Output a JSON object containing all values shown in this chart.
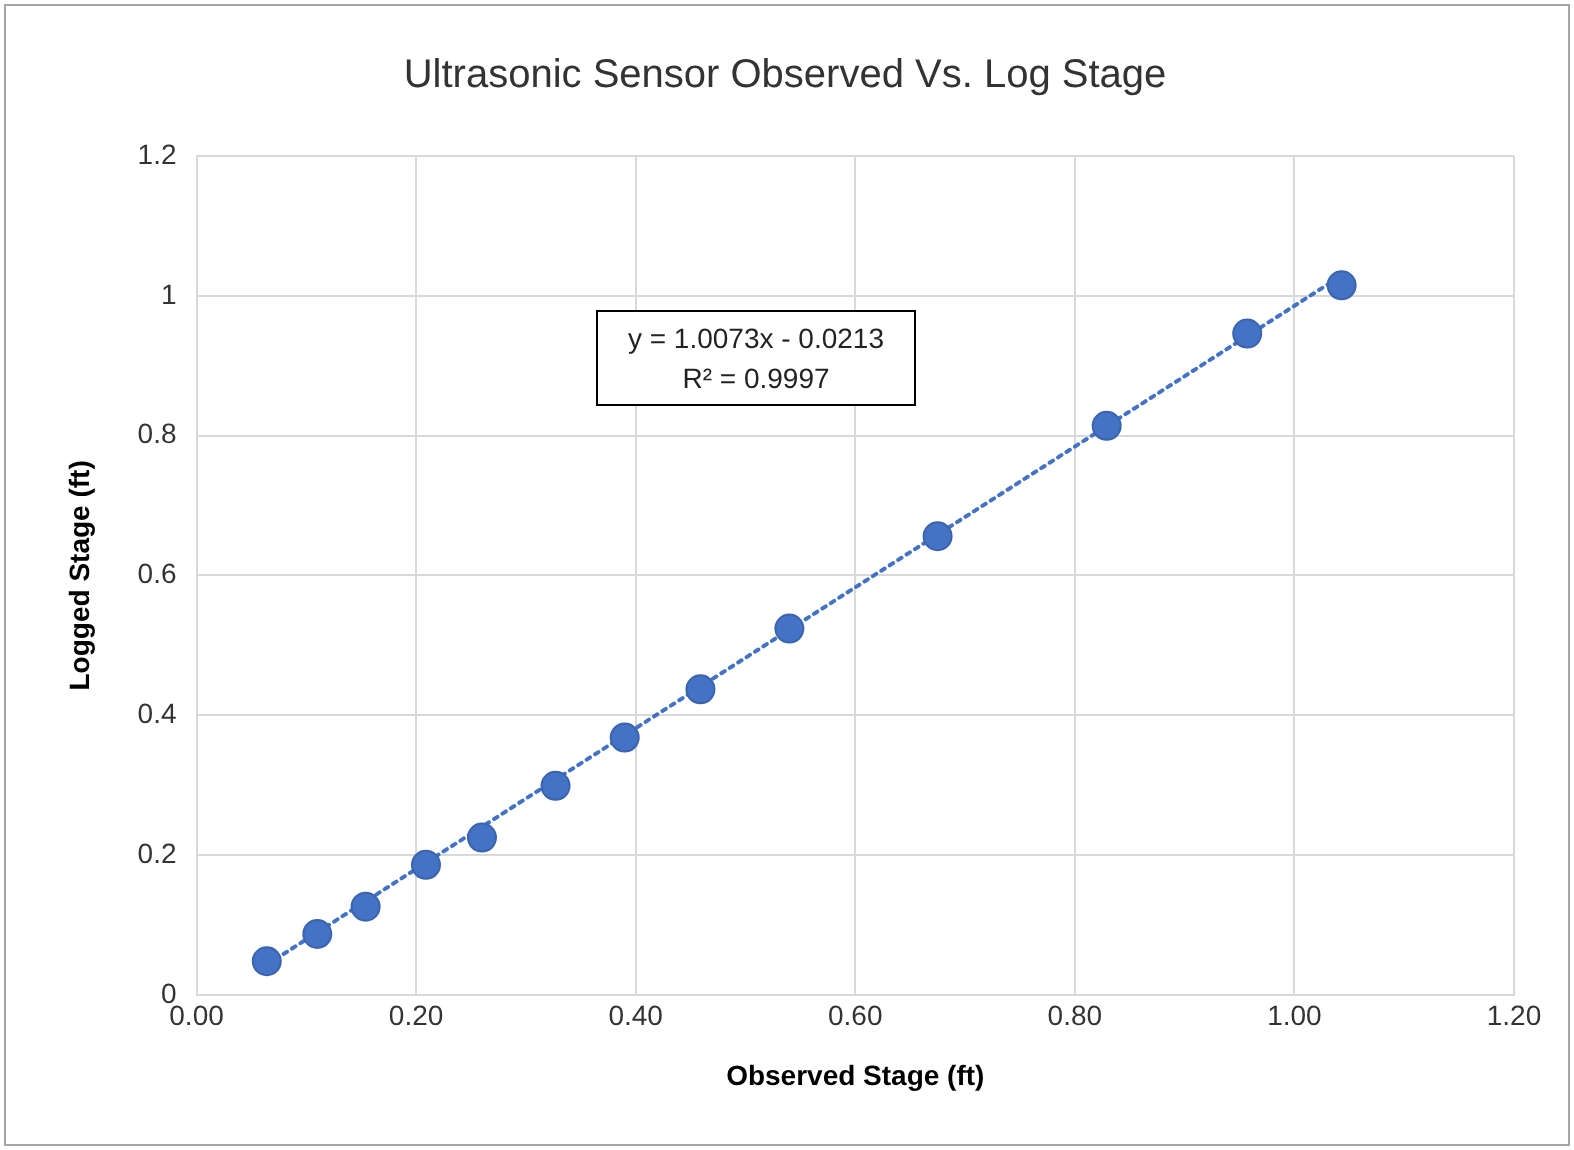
{
  "chart_data": {
    "type": "scatter",
    "title": "Ultrasonic Sensor Observed Vs. Log Stage",
    "xlabel": "Observed Stage (ft)",
    "ylabel": "Logged Stage (ft)",
    "annotations": [
      "y = 1.0073x - 0.0213",
      "R² = 0.9997"
    ],
    "series": [
      {
        "color": "#4472c4",
        "marker": "circle",
        "x": [
          0.064,
          0.11,
          0.154,
          0.209,
          0.26,
          0.327,
          0.39,
          0.459,
          0.54,
          0.675,
          0.829,
          0.957,
          1.043
        ],
        "values": [
          0.048,
          0.087,
          0.126,
          0.186,
          0.225,
          0.299,
          0.368,
          0.437,
          0.524,
          0.656,
          0.814,
          0.946,
          1.015
        ]
      },
      {
        "type": "line",
        "color": "#4472c4",
        "marker": "none",
        "line_style": "dotted",
        "x": [
          0.064,
          1.043
        ],
        "values": [
          0.043,
          1.029
        ]
      }
    ],
    "xlim": [
      0,
      1.2
    ],
    "xticks": [
      {
        "value": 0,
        "label": "0.00"
      },
      {
        "value": 0.2,
        "label": "0.20"
      },
      {
        "value": 0.4,
        "label": "0.40"
      },
      {
        "value": 0.6,
        "label": "0.60"
      },
      {
        "value": 0.8,
        "label": "0.80"
      },
      {
        "value": 1,
        "label": "1.00"
      },
      {
        "value": 1.2,
        "label": "1.20"
      }
    ],
    "ylim": [
      0,
      1.2
    ],
    "yticks": [
      0,
      0.2,
      0.4,
      0.6,
      0.8,
      1,
      1.2
    ],
    "grid": true,
    "legend": false
  }
}
